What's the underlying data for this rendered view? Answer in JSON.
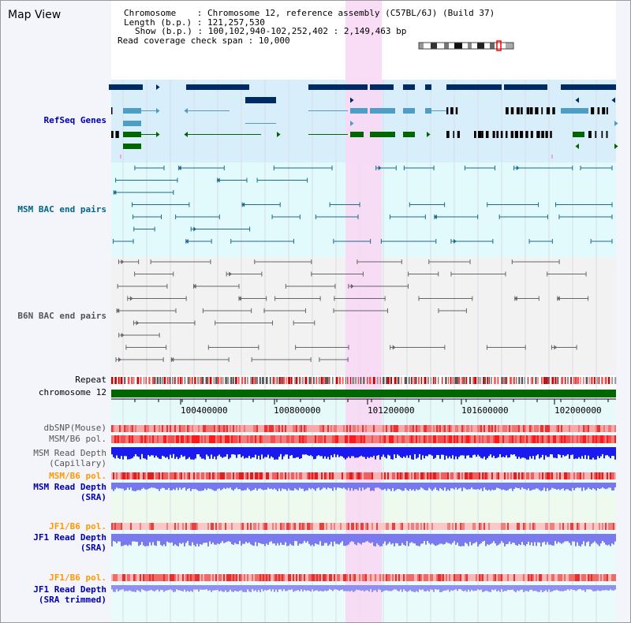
{
  "page_title": "Map View",
  "info": {
    "chromosome_key": "Chromosome",
    "chromosome_value": "Chromosome 12, reference assembly (C57BL/6J) (Build 37)",
    "length_key": "Length (b.p.)",
    "length_value": "121,257,530",
    "show_key": "Show (b.p.)",
    "show_value": "100,102,940-102,252,402 : 2,149,463 bp",
    "span_key": "Read coverage check span",
    "span_value": "10,000"
  },
  "tracks": {
    "refseq": "RefSeq Genes",
    "msm_bac": "MSM BAC end pairs",
    "b6n_bac": "B6N BAC end pairs",
    "repeat": "Repeat",
    "chromosome": "chromosome 12",
    "dbsnp": "dbSNP(Mouse)",
    "msm_b6_pol": "MSM/B6 pol.",
    "msm_depth_cap_1": "MSM Read Depth",
    "msm_depth_cap_2": "(Capillary)",
    "msm_b6_pol_2": "MSM/B6 pol.",
    "msm_depth_sra_1": "MSM Read Depth",
    "msm_depth_sra_2": "(SRA)",
    "jf1_b6_pol": "JF1/B6 pol.",
    "jf1_depth_sra_1": "JF1 Read Depth",
    "jf1_depth_sra_2": "(SRA)",
    "jf1_b6_pol_2": "JF1/B6 pol.",
    "jf1_depth_trim_1": "JF1 Read Depth",
    "jf1_depth_trim_2": "(SRA trimmed)"
  },
  "axis_ticks": [
    "100400000",
    "100800000",
    "101200000",
    "101600000",
    "102000000"
  ],
  "colors": {
    "refseq_label": "#0000aa",
    "msm_bac_label": "#006688",
    "b6n_bac_label": "#555555",
    "orange_label": "#ff9900",
    "blue_label": "#0000aa",
    "highlight": "#f8d8f4",
    "gene_dark": "#002a66",
    "gene_mid": "#4d9dc4",
    "gene_green": "#006600"
  }
}
